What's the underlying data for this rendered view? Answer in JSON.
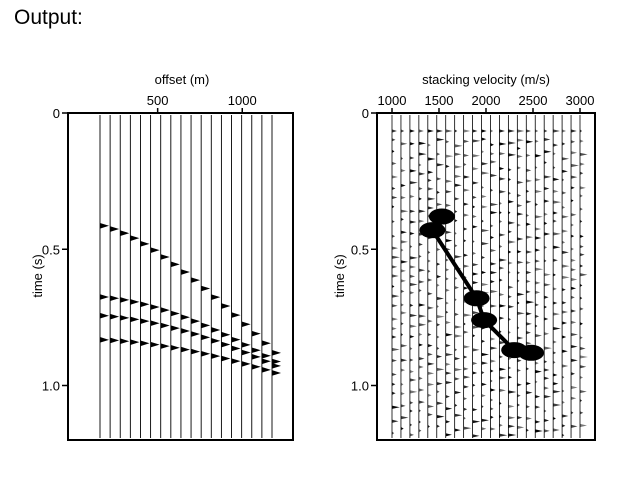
{
  "slide": {
    "title": "Output:"
  },
  "chart_data": [
    {
      "type": "seismic-gather",
      "xlabel": "offset (m)",
      "ylabel": "time (s)",
      "x_ticks": [
        500,
        1000
      ],
      "y_ticks": [
        "0",
        "0.5",
        "1.0"
      ],
      "xlim": [
        -30,
        1300
      ],
      "ylim": [
        0,
        1.2
      ],
      "x_axis_position": "top",
      "trace_count": 18,
      "reflections": [
        {
          "t0": 0.4,
          "v": 1500
        },
        {
          "t0": 0.67,
          "v": 1900
        },
        {
          "t0": 0.74,
          "v": 2100
        },
        {
          "t0": 0.83,
          "v": 2500
        }
      ]
    },
    {
      "type": "velocity-semblance",
      "xlabel": "stacking velocity (m/s)",
      "ylabel": "time (s)",
      "x_ticks": [
        1000,
        1500,
        2000,
        2500,
        3000
      ],
      "y_ticks": [
        "0",
        "0.5",
        "1.0"
      ],
      "xlim": [
        1000,
        3000
      ],
      "ylim": [
        0,
        1.2
      ],
      "x_axis_position": "top",
      "trace_count": 22,
      "picks": [
        {
          "t": 0.38,
          "v": 1530
        },
        {
          "t": 0.43,
          "v": 1430
        },
        {
          "t": 0.68,
          "v": 1900
        },
        {
          "t": 0.76,
          "v": 1980
        },
        {
          "t": 0.87,
          "v": 2300
        },
        {
          "t": 0.88,
          "v": 2480
        }
      ]
    }
  ]
}
